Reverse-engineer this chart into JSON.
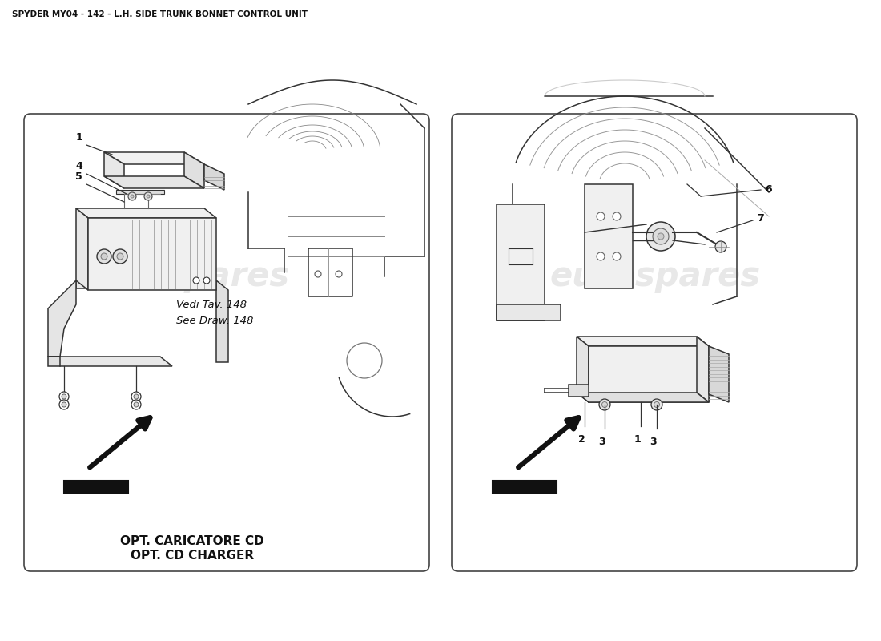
{
  "title": "SPYDER MY04 - 142 - L.H. SIDE TRUNK BONNET CONTROL UNIT",
  "bg": "#ffffff",
  "panel_fc": "#ffffff",
  "panel_ec": "#444444",
  "line_color": "#333333",
  "wm_color": "#cccccc",
  "wm_text": "eurospares",
  "wm_alpha": 0.45,
  "wm_fontsize": 30,
  "note1": "Vedi Tav. 148",
  "note2": "See Draw. 148",
  "label1": "OPT. CARICATORE CD",
  "label2": "OPT. CD CHARGER",
  "title_fontsize": 7.5,
  "label_fontsize": 11,
  "parts_fontsize": 9
}
